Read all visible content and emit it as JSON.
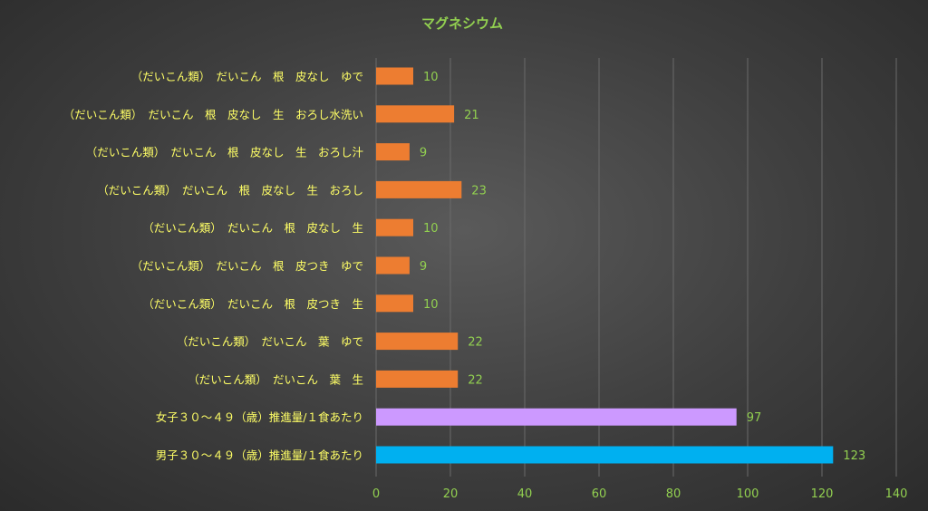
{
  "chart_data": {
    "type": "bar",
    "orientation": "horizontal",
    "title": "マグネシウム",
    "categories": [
      "（だいこん類）　だいこん　根　皮なし　ゆで",
      "（だいこん類）　だいこん　根　皮なし　生　おろし水洗い",
      "（だいこん類）　だいこん　根　皮なし　生　おろし汁",
      "（だいこん類）　だいこん　根　皮なし　生　おろし",
      "（だいこん類）　だいこん　根　皮なし　生",
      "（だいこん類）　だいこん　根　皮つき　ゆで",
      "（だいこん類）　だいこん　根　皮つき　生",
      "（だいこん類）　だいこん　葉　ゆで",
      "（だいこん類）　だいこん　葉　生",
      "女子３０～４９（歳）推進量/１食あたり",
      "男子３０～４９（歳）推進量/１食あたり"
    ],
    "values": [
      10,
      21,
      9,
      23,
      10,
      9,
      10,
      22,
      22,
      97,
      123
    ],
    "bar_colors": [
      "#ED7D31",
      "#ED7D31",
      "#ED7D31",
      "#ED7D31",
      "#ED7D31",
      "#ED7D31",
      "#ED7D31",
      "#ED7D31",
      "#ED7D31",
      "#CC99FF",
      "#00B0F0"
    ],
    "xlim": [
      0,
      140
    ],
    "xticks": [
      0,
      20,
      40,
      60,
      80,
      100,
      120,
      140
    ],
    "grid": true,
    "legend": "none",
    "colors": {
      "title": "#92D050",
      "category_label": "#FFFF66",
      "tick_label": "#92D050",
      "data_label": "#92D050",
      "gridline": "#6A6A6A"
    }
  }
}
